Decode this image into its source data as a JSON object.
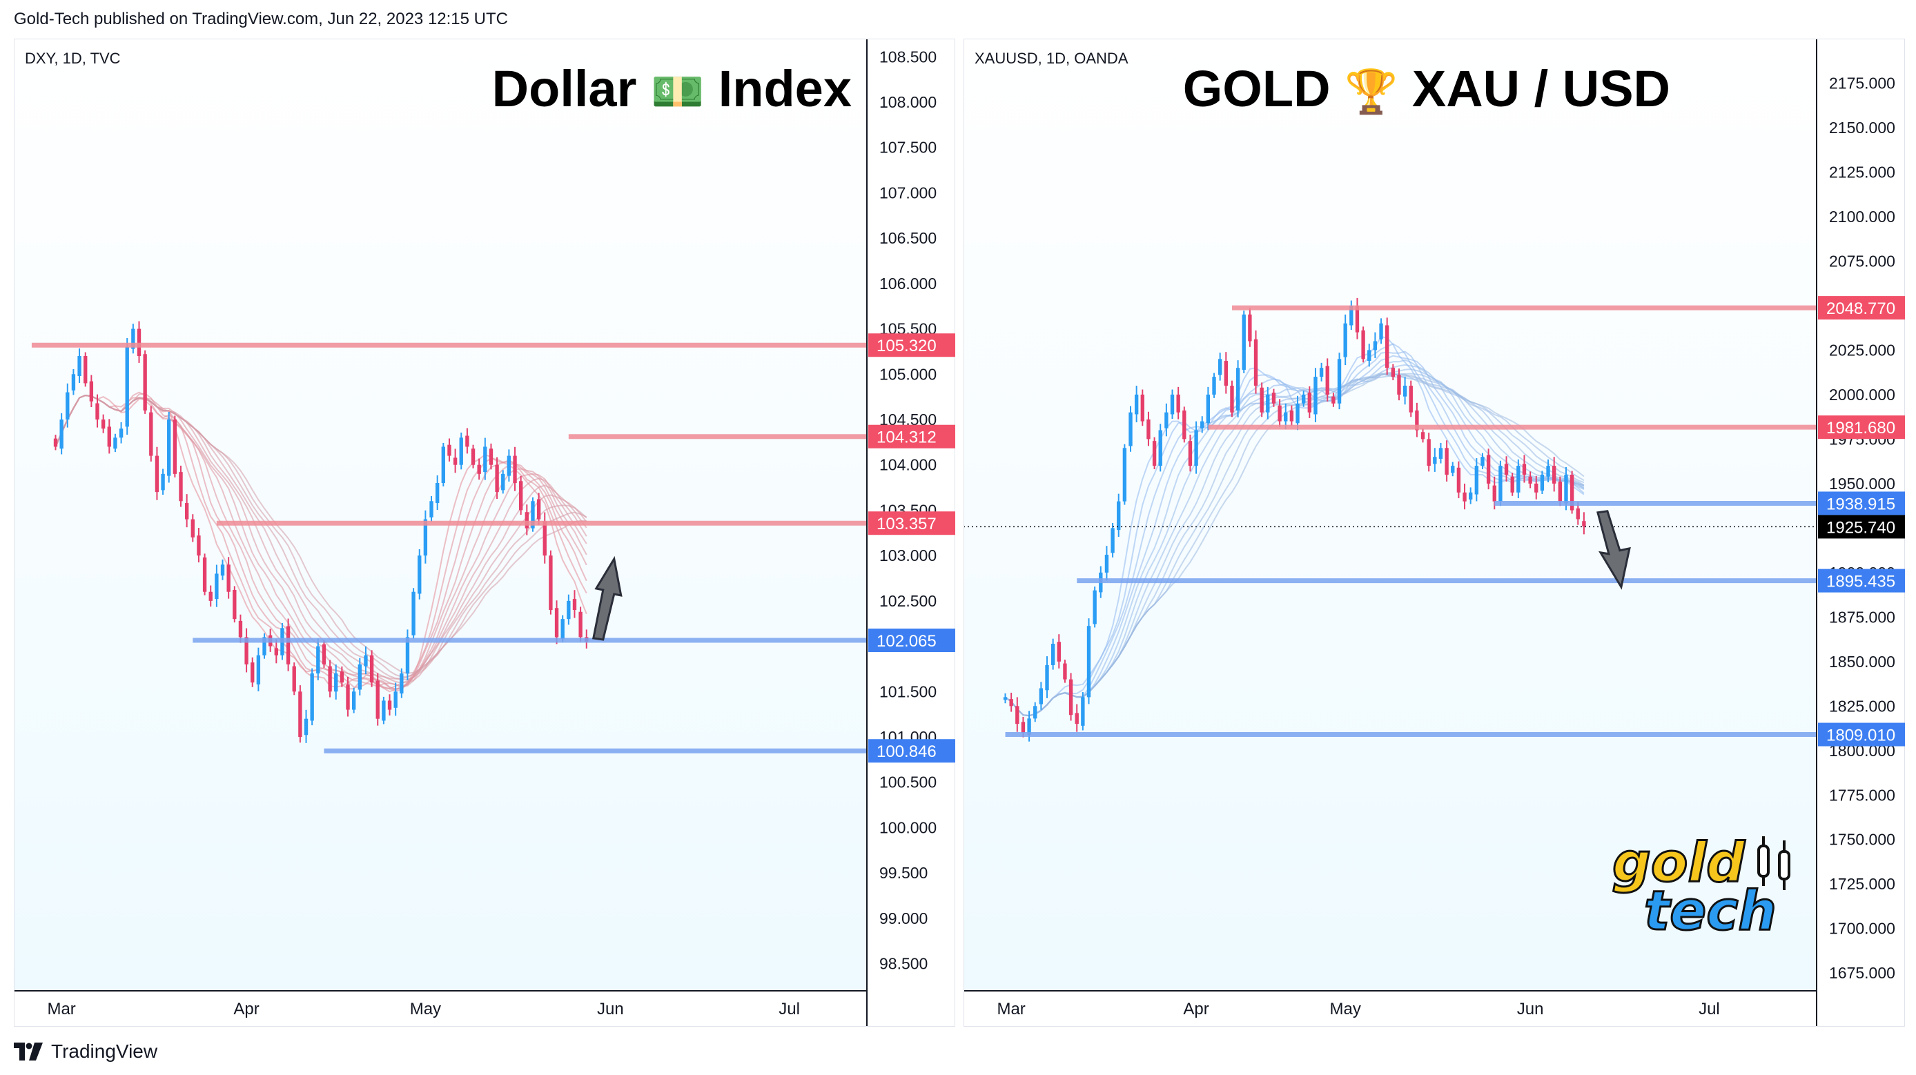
{
  "header": {
    "published_text": "Gold-Tech published on TradingView.com, Jun 22, 2023 12:15 UTC"
  },
  "footer": {
    "brand": "TradingView"
  },
  "colors": {
    "bull": "#2a9df4",
    "bear": "#e53e6a",
    "resistance": "#f08c96",
    "support": "#7aa4f0",
    "panel_bg_top": "#ffffff",
    "panel_bg_bottom": "#eefaff"
  },
  "chart_data": [
    {
      "type": "candlestick",
      "ticker": "DXY, 1D, TVC",
      "title_left": "Dollar",
      "title_emoji": "💵",
      "title_right": "Index",
      "ylim": [
        98.2,
        108.7
      ],
      "y_ticks": [
        "108.500",
        "108.000",
        "107.500",
        "107.000",
        "106.500",
        "106.000",
        "105.500",
        "105.000",
        "104.500",
        "104.000",
        "103.500",
        "103.000",
        "102.500",
        "102.000",
        "101.500",
        "101.000",
        "100.500",
        "100.000",
        "99.500",
        "99.000",
        "98.500"
      ],
      "x_labels": [
        "Mar",
        "Apr",
        "May",
        "Jun",
        "Jul"
      ],
      "x_label_days": [
        1,
        32,
        62,
        93,
        123
      ],
      "x_range": [
        -7,
        136
      ],
      "levels": [
        {
          "value": 105.32,
          "label": "105.320",
          "kind": "resistance",
          "from_day": -4
        },
        {
          "value": 104.312,
          "label": "104.312",
          "kind": "resistance",
          "from_day": 86
        },
        {
          "value": 103.357,
          "label": "103.357",
          "kind": "resistance",
          "from_day": 27
        },
        {
          "value": 102.065,
          "label": "102.065",
          "kind": "support",
          "from_day": 23
        },
        {
          "value": 100.846,
          "label": "100.846",
          "kind": "support",
          "from_day": 45
        }
      ],
      "arrow": "up",
      "ribbon_first_color": "#e38a96",
      "close_path": [
        104.2,
        104.5,
        104.8,
        105.0,
        105.2,
        104.9,
        104.7,
        104.5,
        104.4,
        104.2,
        104.3,
        104.4,
        105.3,
        105.5,
        105.2,
        104.6,
        104.1,
        103.7,
        103.9,
        104.5,
        103.9,
        103.6,
        103.4,
        103.2,
        103.0,
        102.6,
        102.5,
        102.8,
        102.9,
        102.6,
        102.3,
        102.1,
        101.8,
        101.6,
        101.9,
        102.1,
        102.0,
        101.9,
        102.2,
        101.8,
        101.5,
        101.0,
        101.2,
        101.7,
        102.0,
        101.8,
        101.5,
        101.7,
        101.6,
        101.3,
        101.5,
        101.8,
        101.9,
        101.6,
        101.2,
        101.4,
        101.3,
        101.5,
        101.7,
        102.1,
        102.6,
        103.0,
        103.4,
        103.6,
        103.8,
        104.2,
        104.1,
        104.0,
        104.3,
        104.2,
        104.0,
        103.9,
        104.2,
        104.0,
        103.7,
        103.9,
        104.1,
        103.8,
        103.5,
        103.3,
        103.6,
        103.4,
        103.0,
        102.4,
        102.1,
        102.3,
        102.5,
        102.4,
        102.1,
        102.05
      ],
      "ohlc_sample": {
        "open": 102.2,
        "high": 102.3,
        "low": 101.95,
        "close": 102.05
      }
    },
    {
      "type": "candlestick",
      "ticker": "XAUUSD, 1D, OANDA",
      "title_left": "GOLD",
      "title_emoji": "🏆",
      "title_right": "XAU / USD",
      "ylim": [
        1665,
        2200
      ],
      "y_ticks": [
        "2175.000",
        "2150.000",
        "2125.000",
        "2100.000",
        "2075.000",
        "2050.000",
        "2025.000",
        "2000.000",
        "1975.000",
        "1950.000",
        "1925.000",
        "1900.000",
        "1875.000",
        "1850.000",
        "1825.000",
        "1800.000",
        "1775.000",
        "1750.000",
        "1725.000",
        "1700.000",
        "1675.000"
      ],
      "x_labels": [
        "Mar",
        "Apr",
        "May",
        "Jun",
        "Jul"
      ],
      "x_label_days": [
        1,
        32,
        57,
        88,
        118
      ],
      "x_range": [
        -7,
        136
      ],
      "levels": [
        {
          "value": 2048.77,
          "label": "2048.770",
          "kind": "resistance",
          "from_day": 38
        },
        {
          "value": 1981.68,
          "label": "1981.680",
          "kind": "resistance",
          "from_day": 34
        },
        {
          "value": 1938.915,
          "label": "1938.915",
          "kind": "support",
          "from_day": 82
        },
        {
          "value": 1925.74,
          "label": "1925.740",
          "kind": "current",
          "from_day": -7
        },
        {
          "value": 1895.435,
          "label": "1895.435",
          "kind": "support",
          "from_day": 12
        },
        {
          "value": 1809.01,
          "label": "1809.010",
          "kind": "support",
          "from_day": 0
        }
      ],
      "arrow": "down",
      "ribbon_first_color": "#8fb8f0",
      "close_path": [
        1830,
        1825,
        1815,
        1810,
        1818,
        1825,
        1835,
        1848,
        1860,
        1850,
        1840,
        1820,
        1815,
        1830,
        1870,
        1890,
        1900,
        1910,
        1925,
        1940,
        1970,
        1990,
        2000,
        1985,
        1975,
        1960,
        1980,
        1990,
        2000,
        1990,
        1975,
        1960,
        1980,
        1985,
        2000,
        2010,
        2020,
        2005,
        1990,
        2015,
        2045,
        2030,
        2005,
        1990,
        2000,
        1995,
        1985,
        1990,
        1985,
        1995,
        2000,
        1990,
        2010,
        2015,
        2000,
        1995,
        2020,
        2040,
        2050,
        2035,
        2020,
        2025,
        2030,
        2040,
        2015,
        2010,
        2000,
        2005,
        1990,
        1980,
        1975,
        1960,
        1965,
        1970,
        1955,
        1960,
        1945,
        1940,
        1945,
        1960,
        1965,
        1950,
        1940,
        1960,
        1955,
        1945,
        1960,
        1955,
        1950,
        1945,
        1955,
        1960,
        1950,
        1940,
        1955,
        1935,
        1930,
        1926
      ],
      "ohlc_sample": {
        "open": 1930,
        "high": 1935,
        "low": 1920,
        "close": 1925.74
      }
    }
  ]
}
